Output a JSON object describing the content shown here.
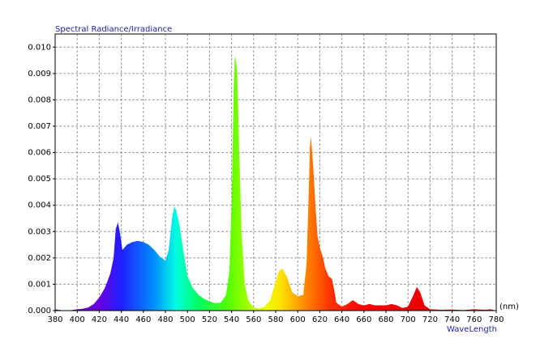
{
  "chart_data": {
    "type": "area",
    "title": "Spectral Radiance/Irradiance",
    "x_label": "WaveLength",
    "x_unit": "(nm)",
    "x": [
      380,
      385,
      390,
      395,
      400,
      405,
      410,
      415,
      420,
      425,
      430,
      433,
      435,
      437,
      439,
      441,
      445,
      450,
      455,
      460,
      465,
      470,
      475,
      480,
      483,
      486,
      488,
      490,
      493,
      495,
      500,
      505,
      510,
      515,
      520,
      525,
      530,
      535,
      538,
      540,
      542,
      543,
      545,
      547,
      549,
      552,
      555,
      560,
      565,
      570,
      575,
      580,
      583,
      586,
      590,
      595,
      600,
      605,
      608,
      610,
      611,
      612,
      614,
      616,
      618,
      620,
      623,
      625,
      628,
      631,
      633,
      635,
      640,
      645,
      650,
      655,
      660,
      665,
      670,
      675,
      680,
      685,
      690,
      695,
      700,
      705,
      708,
      711,
      715,
      720,
      730,
      740,
      750,
      760,
      770,
      775,
      780
    ],
    "values": [
      5e-05,
      2e-05,
      0.0,
      2e-05,
      5e-05,
      7e-05,
      0.00012,
      0.00025,
      0.0005,
      0.00085,
      0.0014,
      0.002,
      0.0031,
      0.00335,
      0.0029,
      0.0023,
      0.0025,
      0.0026,
      0.00265,
      0.0026,
      0.0025,
      0.0023,
      0.00205,
      0.0019,
      0.0023,
      0.0035,
      0.00395,
      0.0038,
      0.0032,
      0.0026,
      0.0013,
      0.00085,
      0.0006,
      0.00045,
      0.00035,
      0.00028,
      0.0003,
      0.0006,
      0.0015,
      0.004,
      0.0085,
      0.0097,
      0.0092,
      0.006,
      0.003,
      0.001,
      0.0004,
      0.00012,
      8e-05,
      0.00015,
      0.0004,
      0.0011,
      0.0015,
      0.0016,
      0.0013,
      0.0007,
      0.00055,
      0.0006,
      0.0018,
      0.0045,
      0.0062,
      0.0066,
      0.0055,
      0.004,
      0.0028,
      0.0024,
      0.002,
      0.0016,
      0.0013,
      0.0012,
      0.0008,
      0.0003,
      0.00015,
      0.00025,
      0.0004,
      0.00025,
      0.0002,
      0.00025,
      0.0002,
      0.0002,
      0.0002,
      0.00025,
      0.0002,
      0.0001,
      0.00015,
      0.0006,
      0.0009,
      0.0007,
      0.0002,
      5e-05,
      3e-05,
      4e-05,
      2e-05,
      5e-05,
      3e-05,
      5e-05,
      0.0
    ],
    "xlim": [
      380,
      780
    ],
    "ylim": [
      0,
      0.0105
    ],
    "xticks": [
      380,
      400,
      420,
      440,
      460,
      480,
      500,
      520,
      540,
      560,
      580,
      600,
      620,
      640,
      660,
      680,
      700,
      720,
      740,
      760,
      780
    ],
    "yticks": [
      {
        "value": 0,
        "label": "0.000"
      },
      {
        "value": 0.001,
        "label": "0.001"
      },
      {
        "value": 0.002,
        "label": "0.002"
      },
      {
        "value": 0.003,
        "label": "0.003"
      },
      {
        "value": 0.004,
        "label": "0.004"
      },
      {
        "value": 0.005,
        "label": "0.005"
      },
      {
        "value": 0.006,
        "label": "0.006"
      },
      {
        "value": 0.007,
        "label": "0.007"
      },
      {
        "value": 0.008,
        "label": "0.008"
      },
      {
        "value": 0.009,
        "label": "0.009"
      },
      {
        "value": 0.01,
        "label": "0.010"
      }
    ],
    "grid": true
  }
}
